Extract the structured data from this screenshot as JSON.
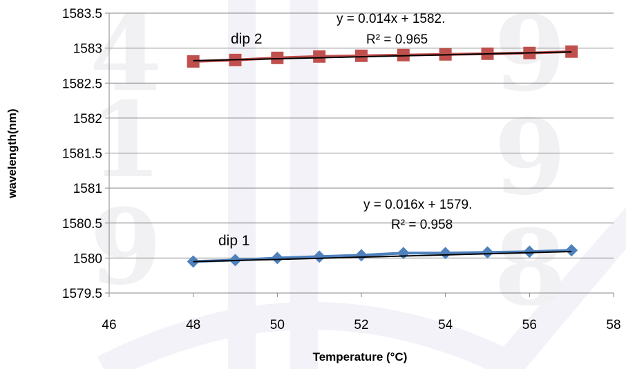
{
  "chart_data": {
    "type": "scatter",
    "title": "",
    "xlabel": "Temperature (°C)",
    "ylabel": "wavelength(nm)",
    "xlim": [
      46,
      58
    ],
    "ylim": [
      1579.5,
      1583.5
    ],
    "xticks": [
      "46",
      "48",
      "50",
      "52",
      "54",
      "56",
      "58"
    ],
    "yticks": [
      "1579.5",
      "1580",
      "1580.5",
      "1581",
      "1581.5",
      "1582",
      "1582.5",
      "1583",
      "1583.5"
    ],
    "grid": "horizontal",
    "legend": "none",
    "series": [
      {
        "name": "dip 1",
        "marker": "diamond",
        "color": "#4f81bd",
        "x": [
          48,
          49,
          50,
          51,
          52,
          53,
          54,
          55,
          56,
          57
        ],
        "y": [
          1579.95,
          1579.97,
          1580.0,
          1580.02,
          1580.04,
          1580.07,
          1580.07,
          1580.08,
          1580.09,
          1580.11
        ],
        "trend": {
          "slope": 0.016,
          "intercept": 1579.18,
          "equation": "y = 0.016x + 1579.",
          "r2": "R² = 0.958"
        }
      },
      {
        "name": "dip 2",
        "marker": "square",
        "color": "#c0504d",
        "x": [
          48,
          49,
          50,
          51,
          52,
          53,
          54,
          55,
          56,
          57
        ],
        "y": [
          1582.81,
          1582.83,
          1582.86,
          1582.88,
          1582.89,
          1582.9,
          1582.91,
          1582.92,
          1582.93,
          1582.95
        ],
        "trend": {
          "slope": 0.014,
          "intercept": 1582.148,
          "equation": "y = 0.014x + 1582.",
          "r2": "R² = 0.965"
        }
      }
    ],
    "trendline_color": "#000000",
    "watermark_digits": [
      "4",
      "1",
      "9",
      "9",
      "9",
      "8"
    ]
  }
}
